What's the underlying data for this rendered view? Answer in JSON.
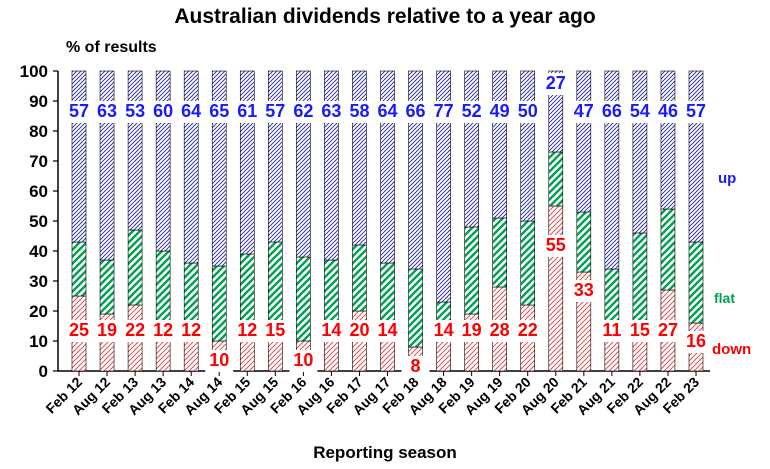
{
  "title": "Australian dividends relative to a year ago",
  "ylabel_top": "% of results",
  "xlabel": "Reporting season",
  "legend": {
    "up": "up",
    "flat": "flat",
    "down": "down"
  },
  "colors": {
    "up": "#1a1aff",
    "flat": "#00a050",
    "down": "#ff0000"
  },
  "chart_data": {
    "type": "bar",
    "stacked": true,
    "title": "Australian dividends relative to a year ago",
    "xlabel": "Reporting season",
    "ylabel": "% of results",
    "ylim": [
      0,
      100
    ],
    "yticks": [
      0,
      10,
      20,
      30,
      40,
      50,
      60,
      70,
      80,
      90,
      100
    ],
    "categories": [
      "Feb 12",
      "Aug 12",
      "Feb 13",
      "Aug 13",
      "Feb 14",
      "Aug 14",
      "Feb 15",
      "Aug 15",
      "Feb 16",
      "Aug 16",
      "Feb 17",
      "Aug 17",
      "Feb 18",
      "Aug 18",
      "Feb 19",
      "Aug 19",
      "Feb 20",
      "Aug 20",
      "Feb 21",
      "Aug 21",
      "Feb 22",
      "Aug 22",
      "Feb 23"
    ],
    "series": [
      {
        "name": "down",
        "values": [
          25,
          19,
          22,
          12,
          12,
          10,
          12,
          15,
          10,
          14,
          20,
          14,
          8,
          14,
          19,
          28,
          22,
          55,
          33,
          11,
          15,
          27,
          16
        ]
      },
      {
        "name": "flat",
        "values": [
          18,
          18,
          25,
          28,
          24,
          25,
          27,
          28,
          28,
          23,
          22,
          22,
          26,
          9,
          29,
          23,
          28,
          18,
          20,
          23,
          31,
          27,
          27
        ]
      },
      {
        "name": "up",
        "values": [
          57,
          63,
          53,
          60,
          64,
          65,
          61,
          57,
          62,
          63,
          58,
          64,
          66,
          77,
          52,
          49,
          50,
          27,
          47,
          66,
          54,
          46,
          57
        ]
      }
    ]
  }
}
